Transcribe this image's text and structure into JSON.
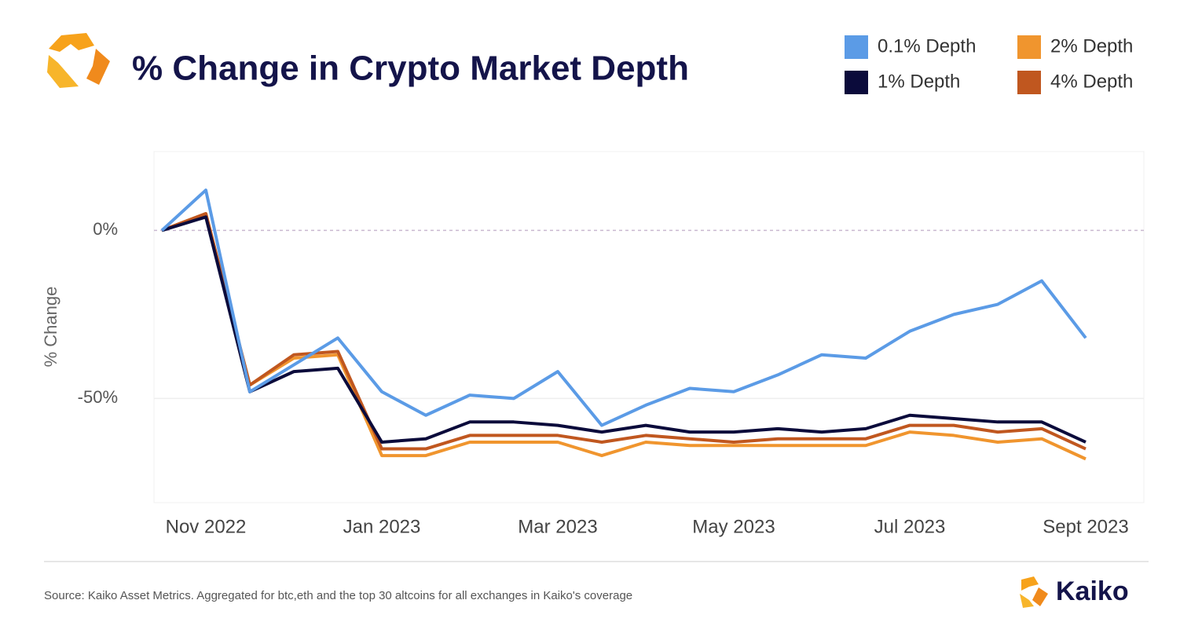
{
  "chart_data": {
    "type": "line",
    "title": "% Change in Crypto Market Depth",
    "y_label": "% Change",
    "categories": [
      null,
      "Nov 2022",
      null,
      null,
      null,
      "Jan 2023",
      null,
      null,
      null,
      "Mar 2023",
      null,
      null,
      null,
      "May 2023",
      null,
      null,
      null,
      "Jul 2023",
      null,
      null,
      null,
      "Sept 2023"
    ],
    "series": [
      {
        "name": "0.1% Depth",
        "color": "#5b9be6",
        "values": [
          0,
          12,
          -48,
          -40,
          -32,
          -48,
          -55,
          -49,
          -50,
          -42,
          -58,
          -52,
          -47,
          -48,
          -43,
          -37,
          -38,
          -30,
          -25,
          -22,
          -15,
          -32
        ]
      },
      {
        "name": "1% Depth",
        "color": "#0b0b3b",
        "values": [
          0,
          4,
          -48,
          -42,
          -41,
          -63,
          -62,
          -57,
          -57,
          -58,
          -60,
          -58,
          -60,
          -60,
          -59,
          -60,
          -59,
          -55,
          -56,
          -57,
          -57,
          -63
        ]
      },
      {
        "name": "2% Depth",
        "color": "#f0952e",
        "values": [
          0,
          5,
          -46,
          -38,
          -37,
          -67,
          -67,
          -63,
          -63,
          -63,
          -67,
          -63,
          -64,
          -64,
          -64,
          -64,
          -64,
          -60,
          -61,
          -63,
          -62,
          -68
        ]
      },
      {
        "name": "4% Depth",
        "color": "#c0571f",
        "values": [
          0,
          5,
          -46,
          -37,
          -36,
          -65,
          -65,
          -61,
          -61,
          -61,
          -63,
          -61,
          -62,
          -63,
          -62,
          -62,
          -62,
          -58,
          -58,
          -60,
          -59,
          -65
        ]
      }
    ],
    "ylim": [
      -81,
      23
    ],
    "yticks": [
      {
        "value": -50,
        "label": "-50%"
      },
      {
        "value": 0,
        "label": "0%"
      }
    ],
    "grid": true
  },
  "footer": {
    "source": "Source: Kaiko Asset Metrics. Aggregated for btc,eth and the top 30 altcoins for all exchanges in Kaiko's coverage",
    "brand": "Kaiko"
  }
}
